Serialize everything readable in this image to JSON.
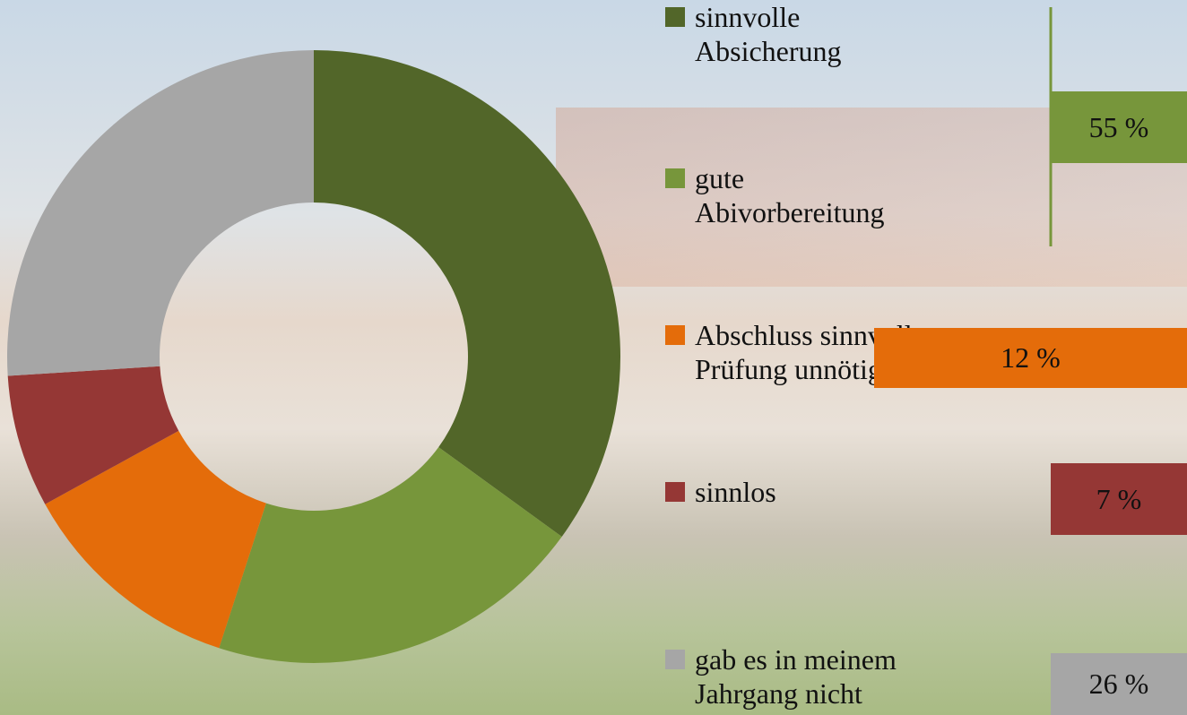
{
  "chart_data": {
    "type": "donut",
    "categories": [
      "sinnvolle\nAbsicherung",
      "gute\nAbivorbereitung",
      "Abschluss sinnvoll,\nPrüfung unnötig",
      "sinnlos",
      "gab es in meinem\nJahrgang nicht"
    ],
    "values": [
      35,
      20,
      12,
      7,
      26
    ],
    "value_labels": [
      null,
      null,
      "12 %",
      "7 %",
      "26 %"
    ],
    "group_label": {
      "value": 55,
      "label": "55 %"
    },
    "colors": [
      "#526629",
      "#77963b",
      "#e46c0a",
      "#953735",
      "#a6a6a6"
    ],
    "legend": "right"
  }
}
